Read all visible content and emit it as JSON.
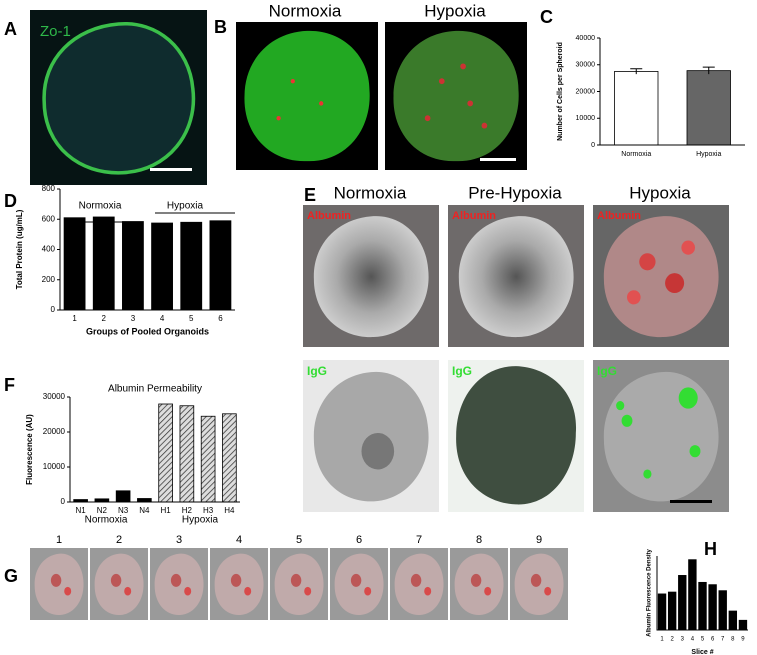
{
  "panels": {
    "A": {
      "label": "A",
      "stain": "Zo-1"
    },
    "B": {
      "label": "B",
      "conditions": [
        "Normoxia",
        "Hypoxia"
      ]
    },
    "C": {
      "label": "C"
    },
    "D": {
      "label": "D"
    },
    "E": {
      "label": "E",
      "conditions": [
        "Normoxia",
        "Pre-Hypoxia",
        "Hypoxia"
      ],
      "rows": [
        "Albumin",
        "IgG"
      ]
    },
    "F": {
      "label": "F"
    },
    "G": {
      "label": "G",
      "slices": [
        "1",
        "2",
        "3",
        "4",
        "5",
        "6",
        "7",
        "8",
        "9"
      ]
    },
    "H": {
      "label": "H"
    }
  },
  "chart_data": [
    {
      "type": "bar",
      "ylabel": "Number of Cells per Spheroid",
      "categories": [
        "Normoxia",
        "Hypoxia"
      ],
      "values": [
        27500,
        27800
      ],
      "errors": [
        1000,
        1300
      ],
      "colors": [
        "#ffffff",
        "#666666"
      ],
      "ylim": [
        0,
        40000
      ],
      "yticks": [
        0,
        10000,
        20000,
        30000,
        40000
      ]
    },
    {
      "type": "bar",
      "ylabel": "Total Protein (ug/mL)",
      "xlabel": "Groups of Pooled Organoids",
      "categories": [
        "1",
        "2",
        "3",
        "4",
        "5",
        "6"
      ],
      "values": [
        610,
        615,
        585,
        575,
        580,
        590
      ],
      "colors": [
        "#000000",
        "#000000",
        "#000000",
        "#000000",
        "#000000",
        "#000000"
      ],
      "annotations": [
        "Normoxia",
        "Hypoxia"
      ],
      "ylim": [
        0,
        800
      ],
      "yticks": [
        0,
        200,
        400,
        600,
        800
      ]
    },
    {
      "type": "bar",
      "title": "Albumin Permeability",
      "ylabel": "Fluorescence (AU)",
      "categories": [
        "N1",
        "N2",
        "N3",
        "N4",
        "H1",
        "H2",
        "H3",
        "H4"
      ],
      "values": [
        700,
        900,
        3200,
        1000,
        28000,
        27500,
        24500,
        25200
      ],
      "colors": [
        "#000000",
        "#000000",
        "#000000",
        "#000000",
        "#bbbbbb",
        "#bbbbbb",
        "#bbbbbb",
        "#bbbbbb"
      ],
      "hatch": [
        false,
        false,
        false,
        false,
        true,
        true,
        true,
        true
      ],
      "annotations": [
        "Normoxia",
        "Hypoxia"
      ],
      "ylim": [
        0,
        30000
      ],
      "yticks": [
        0,
        10000,
        20000,
        30000
      ]
    },
    {
      "type": "bar",
      "ylabel": "Albumin Fluorescence Density",
      "xlabel": "Slice #",
      "categories": [
        "1",
        "2",
        "3",
        "4",
        "5",
        "6",
        "7",
        "8",
        "9"
      ],
      "values": [
        7.8,
        8.2,
        11.8,
        15.2,
        10.3,
        9.8,
        8.5,
        4.1,
        2.1
      ],
      "colors": [
        "#000000",
        "#000000",
        "#000000",
        "#000000",
        "#000000",
        "#000000",
        "#000000",
        "#000000",
        "#000000"
      ],
      "ylim": [
        0,
        16
      ]
    }
  ]
}
